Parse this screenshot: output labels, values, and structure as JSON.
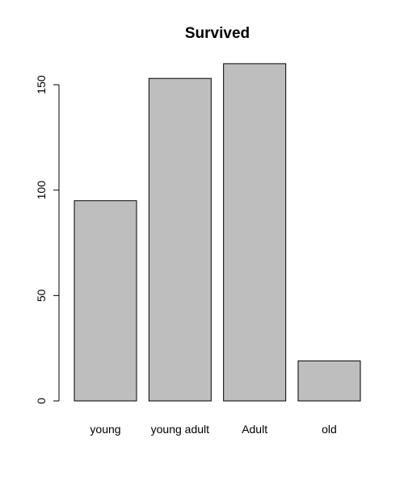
{
  "chart_data": {
    "type": "bar",
    "title": "Survived",
    "xlabel": "",
    "ylabel": "",
    "categories": [
      "young",
      "young adult",
      "Adult",
      "old"
    ],
    "values": [
      95,
      153,
      160,
      19
    ],
    "ylim": [
      0,
      165
    ],
    "yticks": [
      0,
      50,
      100,
      150
    ],
    "bar_fill": "#bebebe",
    "bar_stroke": "#000000",
    "grid": false,
    "legend": "none"
  }
}
